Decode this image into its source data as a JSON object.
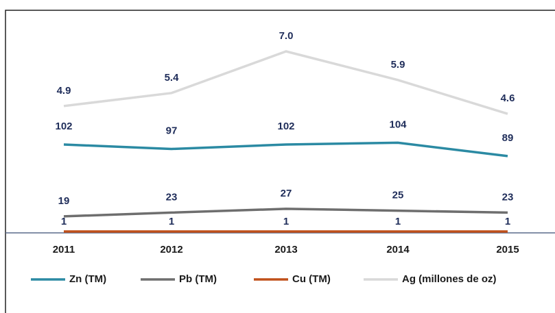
{
  "chart_data": {
    "type": "line",
    "categories": [
      "2011",
      "2012",
      "2013",
      "2014",
      "2015"
    ],
    "series": [
      {
        "name": "Zn (TM)",
        "color": "#2b8aa3",
        "values": [
          102,
          97,
          102,
          104,
          89
        ]
      },
      {
        "name": "Pb (TM)",
        "color": "#6e6e6e",
        "values": [
          19,
          23,
          27,
          25,
          23
        ]
      },
      {
        "name": "Cu (TM)",
        "color": "#c0501a",
        "values": [
          1,
          1,
          1,
          1,
          1
        ]
      },
      {
        "name": "Ag (millones de oz)",
        "color": "#d9d9d9",
        "values": [
          4.9,
          5.4,
          7.0,
          5.9,
          4.6
        ],
        "value_labels": [
          "4.9",
          "5.4",
          "7.0",
          "5.9",
          "4.6"
        ]
      }
    ]
  }
}
